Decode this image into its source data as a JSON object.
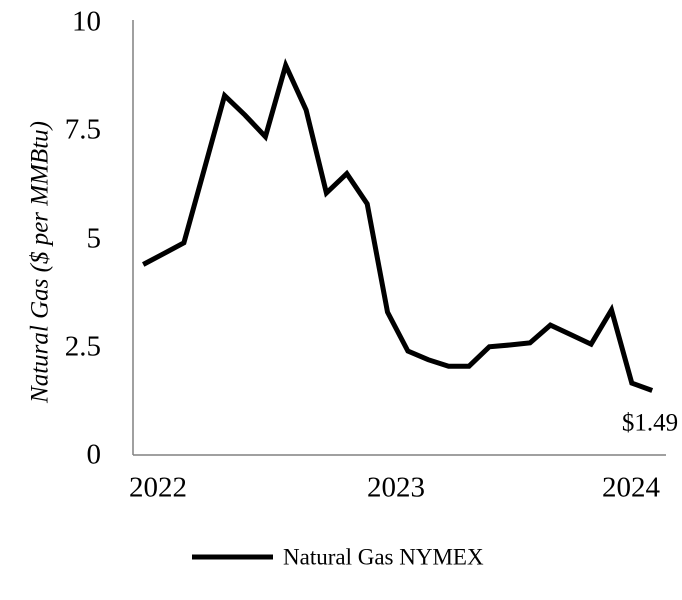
{
  "chart_data": {
    "type": "line",
    "title": "",
    "xlabel": "",
    "ylabel": "Natural Gas ($ per MMBtu)",
    "ylim": [
      0,
      10
    ],
    "grid": false,
    "background_color": "#ffffff",
    "axis_color": "#808080",
    "line_color": "#000000",
    "text_color": "#000000",
    "yticks": [
      {
        "label": "10",
        "value": 10
      },
      {
        "label": "7.5",
        "value": 7.5
      },
      {
        "label": "5",
        "value": 5
      },
      {
        "label": "2.5",
        "value": 2.5
      },
      {
        "label": "0",
        "value": 0
      }
    ],
    "xticks": [
      {
        "label": "2022"
      },
      {
        "label": "2023"
      },
      {
        "label": "2024"
      }
    ],
    "categories": [
      "Jan 2022",
      "Feb 2022",
      "Mar 2022",
      "Apr 2022",
      "May 2022",
      "Jun 2022",
      "Jul 2022",
      "Aug 2022",
      "Sep 2022",
      "Oct 2022",
      "Nov 2022",
      "Dec 2022",
      "Jan 2023",
      "Feb 2023",
      "Mar 2023",
      "Apr 2023",
      "May 2023",
      "Jun 2023",
      "Jul 2023",
      "Aug 2023",
      "Sep 2023",
      "Oct 2023",
      "Nov 2023",
      "Dec 2023",
      "Jan 2024",
      "Feb 2024"
    ],
    "series": [
      {
        "name": "Natural Gas NYMEX",
        "values": [
          4.4,
          4.65,
          4.9,
          6.6,
          8.3,
          7.85,
          7.35,
          9.0,
          7.97,
          6.05,
          6.5,
          5.8,
          3.3,
          2.4,
          2.2,
          2.05,
          2.05,
          2.5,
          2.54,
          2.59,
          3.0,
          2.78,
          2.56,
          3.35,
          1.66,
          1.49
        ]
      }
    ],
    "annotation": {
      "text": "$1.49",
      "target": "last point"
    },
    "legend": {
      "position": "bottom",
      "entries": [
        "Natural Gas NYMEX"
      ]
    }
  }
}
